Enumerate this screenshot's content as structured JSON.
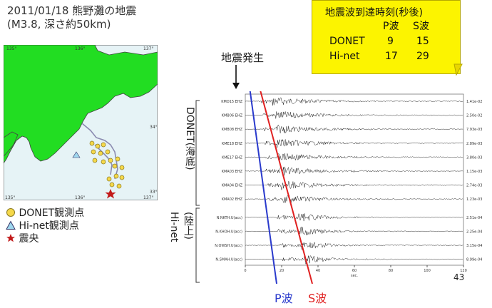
{
  "title": "2011/01/18 熊野灘の地震",
  "subtitle": "(M3.8, 深さ約50km)",
  "note": {
    "heading": "地震波到達時刻(秒後)",
    "col_p": "P波",
    "col_s": "S波",
    "rows": [
      {
        "name": "DONET",
        "p": "9",
        "s": "15"
      },
      {
        "name": "Hi-net",
        "p": "17",
        "s": "29"
      }
    ]
  },
  "arrow_label": "地震発生",
  "map": {
    "lon_ticks": [
      "135°",
      "136°",
      "137°"
    ],
    "bottom_ticks": [
      "135°",
      "136°",
      "137°"
    ],
    "lat_ticks": [
      "34°",
      "33°"
    ],
    "land_color": "#22dd22",
    "sea_color": "#e6f3f6"
  },
  "legend": [
    {
      "symbol": "circle",
      "label": "DONET観測点",
      "color": "#f5d84a"
    },
    {
      "symbol": "triangle",
      "label": "Hi-net観測点",
      "color": "#9fd7ee"
    },
    {
      "symbol": "star",
      "label": "震央",
      "color": "#c21a1a"
    }
  ],
  "group_labels": {
    "donet": "DONET(海底)",
    "hinet": "Hi-net",
    "hinet_sub": "(陸上)"
  },
  "stations": [
    {
      "name": "KMD15 EHZ",
      "amp": "1.41e-02",
      "group": "donet"
    },
    {
      "name": "KMB06 EHZ",
      "amp": "2.50e-02",
      "group": "donet"
    },
    {
      "name": "KMB08 EHZ",
      "amp": "7.93e-03",
      "group": "donet"
    },
    {
      "name": "KME18 EHZ",
      "amp": "2.89e-03",
      "group": "donet"
    },
    {
      "name": "KME17 EHZ",
      "amp": "3.80e-03",
      "group": "donet"
    },
    {
      "name": "KMA03 EHZ",
      "amp": "1.15e-03",
      "group": "donet"
    },
    {
      "name": "KMA04 EHZ",
      "amp": "2.74e-03",
      "group": "donet"
    },
    {
      "name": "KMA02 EHZ",
      "amp": "1.23e-03",
      "group": "donet"
    },
    {
      "name": "N.NKTH.U(acc)",
      "amp": "2.51e-04",
      "group": "hinet"
    },
    {
      "name": "N.KHOH.U(acc)",
      "amp": "2.25e-04",
      "group": "hinet"
    },
    {
      "name": "N.OWSH.U(acc)",
      "amp": "3.15e-04",
      "group": "hinet"
    },
    {
      "name": "N.SMAH.U(acc)",
      "amp": "8.99e-04",
      "group": "hinet"
    }
  ],
  "time_axis": {
    "ticks": [
      "0",
      "20",
      "40",
      "60",
      "80",
      "100",
      "120"
    ],
    "unit": "sec.",
    "max": 120
  },
  "p_label": "P波",
  "s_label": "S波",
  "page_number": "43",
  "colors": {
    "p": "#2a3acc",
    "s": "#e02020",
    "note": "#fcf400"
  }
}
